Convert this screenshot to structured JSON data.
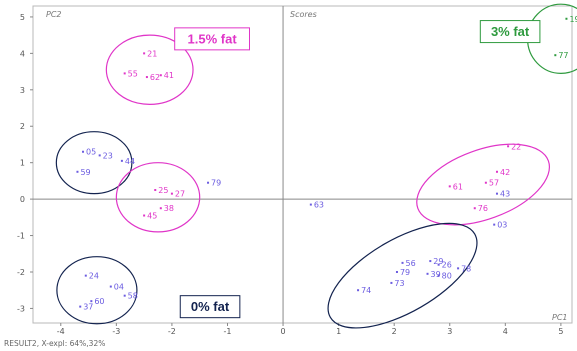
{
  "chart_data": {
    "type": "scatter",
    "title": "Scores",
    "xlabel": "PC1",
    "ylabel": "PC2",
    "xlim": [
      -4.5,
      5.2
    ],
    "ylim": [
      -3.4,
      5.3
    ],
    "xticks": [
      "-4",
      "-3",
      "-2",
      "-1",
      "0",
      "1",
      "2",
      "3",
      "4",
      "5"
    ],
    "yticks": [
      "5",
      "4",
      "3",
      "2",
      "1",
      "0",
      "-1",
      "-2",
      "-3"
    ],
    "grid": false,
    "footer": "RESULT2, X-expl: 64%,32%",
    "colors": {
      "purple": "#6b5ce0",
      "magenta": "#e035c8",
      "green": "#2e9a3e",
      "navy": "#13234f"
    },
    "points": [
      {
        "label": "19",
        "x": 5.1,
        "y": 4.95,
        "color": "green"
      },
      {
        "label": "77",
        "x": 4.9,
        "y": 3.95,
        "color": "green"
      },
      {
        "label": "21",
        "x": -2.5,
        "y": 4.0,
        "color": "magenta"
      },
      {
        "label": "55",
        "x": -2.85,
        "y": 3.45,
        "color": "magenta"
      },
      {
        "label": "62",
        "x": -2.45,
        "y": 3.35,
        "color": "magenta"
      },
      {
        "label": "41",
        "x": -2.2,
        "y": 3.4,
        "color": "magenta"
      },
      {
        "label": "05",
        "x": -3.6,
        "y": 1.3,
        "color": "purple"
      },
      {
        "label": "23",
        "x": -3.3,
        "y": 1.2,
        "color": "purple"
      },
      {
        "label": "44",
        "x": -2.9,
        "y": 1.05,
        "color": "purple"
      },
      {
        "label": "59",
        "x": -3.7,
        "y": 0.75,
        "color": "purple"
      },
      {
        "label": "25",
        "x": -2.3,
        "y": 0.25,
        "color": "magenta"
      },
      {
        "label": "27",
        "x": -2.0,
        "y": 0.15,
        "color": "magenta"
      },
      {
        "label": "79",
        "x": -1.35,
        "y": 0.45,
        "color": "purple"
      },
      {
        "label": "38",
        "x": -2.2,
        "y": -0.25,
        "color": "magenta"
      },
      {
        "label": "45",
        "x": -2.5,
        "y": -0.45,
        "color": "magenta"
      },
      {
        "label": "63",
        "x": 0.5,
        "y": -0.15,
        "color": "purple"
      },
      {
        "label": "22",
        "x": 4.05,
        "y": 1.45,
        "color": "magenta"
      },
      {
        "label": "42",
        "x": 3.85,
        "y": 0.75,
        "color": "magenta"
      },
      {
        "label": "57",
        "x": 3.65,
        "y": 0.45,
        "color": "magenta"
      },
      {
        "label": "61",
        "x": 3.0,
        "y": 0.35,
        "color": "magenta"
      },
      {
        "label": "43",
        "x": 3.85,
        "y": 0.15,
        "color": "purple"
      },
      {
        "label": "76",
        "x": 3.45,
        "y": -0.25,
        "color": "magenta"
      },
      {
        "label": "03",
        "x": 3.8,
        "y": -0.7,
        "color": "purple"
      },
      {
        "label": "56",
        "x": 2.15,
        "y": -1.75,
        "color": "purple"
      },
      {
        "label": "29",
        "x": 2.65,
        "y": -1.7,
        "color": "purple"
      },
      {
        "label": "26",
        "x": 2.8,
        "y": -1.8,
        "color": "purple"
      },
      {
        "label": "79",
        "x": 2.05,
        "y": -2.0,
        "color": "purple"
      },
      {
        "label": "39",
        "x": 2.6,
        "y": -2.05,
        "color": "purple"
      },
      {
        "label": "80",
        "x": 2.8,
        "y": -2.1,
        "color": "purple"
      },
      {
        "label": "78",
        "x": 3.15,
        "y": -1.9,
        "color": "purple"
      },
      {
        "label": "73",
        "x": 1.95,
        "y": -2.3,
        "color": "purple"
      },
      {
        "label": "74",
        "x": 1.35,
        "y": -2.5,
        "color": "purple"
      },
      {
        "label": "24",
        "x": -3.55,
        "y": -2.1,
        "color": "purple"
      },
      {
        "label": "04",
        "x": -3.1,
        "y": -2.4,
        "color": "purple"
      },
      {
        "label": "58",
        "x": -2.85,
        "y": -2.65,
        "color": "purple"
      },
      {
        "label": "60",
        "x": -3.45,
        "y": -2.8,
        "color": "purple"
      },
      {
        "label": "37",
        "x": -3.65,
        "y": -2.95,
        "color": "purple"
      }
    ],
    "groups": [
      {
        "label": "1.5% fat",
        "color": "magenta",
        "cx": -2.4,
        "cy": 3.55,
        "rx": 0.78,
        "ry": 0.95,
        "box_x": -1.95,
        "box_y": 4.7
      },
      {
        "label": "3% fat",
        "color": "green",
        "cx": 5.0,
        "cy": 4.4,
        "rx": 0.6,
        "ry": 0.95,
        "box_x": 3.55,
        "box_y": 4.9
      },
      {
        "label": "0% fat",
        "color": "navy",
        "cx": -3.35,
        "cy": -2.5,
        "rx": 0.72,
        "ry": 0.92,
        "box_x": -1.85,
        "box_y": -2.65
      }
    ],
    "ellipses": [
      {
        "color": "navy",
        "cx": -3.4,
        "cy": 1.0,
        "rx": 0.68,
        "ry": 0.85,
        "rot": 0
      },
      {
        "color": "magenta",
        "cx": -2.25,
        "cy": 0.05,
        "rx": 0.75,
        "ry": 0.95,
        "rot": 0
      },
      {
        "color": "magenta",
        "cx": 3.6,
        "cy": 0.4,
        "rx": 1.25,
        "ry": 0.95,
        "rot": -20
      },
      {
        "color": "navy",
        "cx": 2.15,
        "cy": -2.1,
        "rx": 1.5,
        "ry": 1.0,
        "rot": -30
      }
    ]
  }
}
